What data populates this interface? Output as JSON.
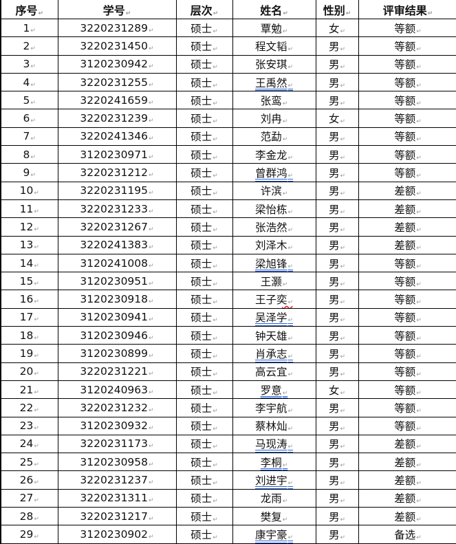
{
  "headers": [
    "序号",
    "学号",
    "层次",
    "姓名",
    "性别",
    "评审结果"
  ],
  "rows": [
    [
      "1",
      "3220231289",
      "硕士",
      "覃勉",
      "女",
      "等额"
    ],
    [
      "2",
      "3220231450",
      "硕士",
      "程文韬",
      "男",
      "等额"
    ],
    [
      "3",
      "3120230942",
      "硕士",
      "张安琪",
      "男",
      "等额"
    ],
    [
      "4",
      "3220231255",
      "硕士",
      "王禹然",
      "男",
      "等额"
    ],
    [
      "5",
      "3220241659",
      "硕士",
      "张鸾",
      "男",
      "等额"
    ],
    [
      "6",
      "3220231239",
      "硕士",
      "刘冉",
      "女",
      "等额"
    ],
    [
      "7",
      "3220241346",
      "硕士",
      "范勐",
      "男",
      "等额"
    ],
    [
      "8",
      "3120230971",
      "硕士",
      "李金龙",
      "男",
      "等额"
    ],
    [
      "9",
      "3220231212",
      "硕士",
      "曾群鸿",
      "男",
      "等额"
    ],
    [
      "10",
      "3220231195",
      "硕士",
      "许滨",
      "男",
      "差额"
    ],
    [
      "11",
      "3220231233",
      "硕士",
      "梁怡栋",
      "男",
      "差额"
    ],
    [
      "12",
      "3220231267",
      "硕士",
      "张浩然",
      "男",
      "差额"
    ],
    [
      "13",
      "3220241383",
      "硕士",
      "刘泽木",
      "男",
      "差额"
    ],
    [
      "14",
      "3120241008",
      "硕士",
      "梁旭锋",
      "男",
      "等额"
    ],
    [
      "15",
      "3120230951",
      "硕士",
      "王灏",
      "男",
      "等额"
    ],
    [
      "16",
      "3120230918",
      "硕士",
      "王子奕",
      "男",
      "等额"
    ],
    [
      "17",
      "3120230941",
      "硕士",
      "吴泽学",
      "男",
      "等额"
    ],
    [
      "18",
      "3120230946",
      "硕士",
      "钟天雄",
      "男",
      "等额"
    ],
    [
      "19",
      "3120230899",
      "硕士",
      "肖承志",
      "男",
      "等额"
    ],
    [
      "20",
      "3220231221",
      "硕士",
      "高云宜",
      "男",
      "等额"
    ],
    [
      "21",
      "3120240963",
      "硕士",
      "罗意",
      "女",
      "等额"
    ],
    [
      "22",
      "3220231232",
      "硕士",
      "李宇航",
      "男",
      "等额"
    ],
    [
      "23",
      "3120230932",
      "硕士",
      "蔡林灿",
      "男",
      "等额"
    ],
    [
      "24",
      "3220231173",
      "硕士",
      "马现涛",
      "男",
      "差额"
    ],
    [
      "25",
      "3120230958",
      "硕士",
      "李桐",
      "男",
      "差额"
    ],
    [
      "26",
      "3220231237",
      "硕士",
      "刘进宇",
      "男",
      "差额"
    ],
    [
      "27",
      "3220231311",
      "硕士",
      "龙雨",
      "男",
      "差额"
    ],
    [
      "28",
      "3220231217",
      "硕士",
      "樊复",
      "男",
      "差额"
    ],
    [
      "29",
      "3120230902",
      "硕士",
      "康宇豪",
      "男",
      "备选"
    ]
  ],
  "underlined_names": [
    "王禹然",
    "曾群鸿",
    "梁旭锋",
    "吴泽学",
    "肖承志",
    "罗意",
    "马现涛",
    "李桐",
    "刘进宇",
    "康宇豪"
  ],
  "spellcheck_names": [
    "王子奕"
  ],
  "colors": {
    "grammar_underline": "#2a62d8",
    "spell_underline": "#e02020"
  }
}
